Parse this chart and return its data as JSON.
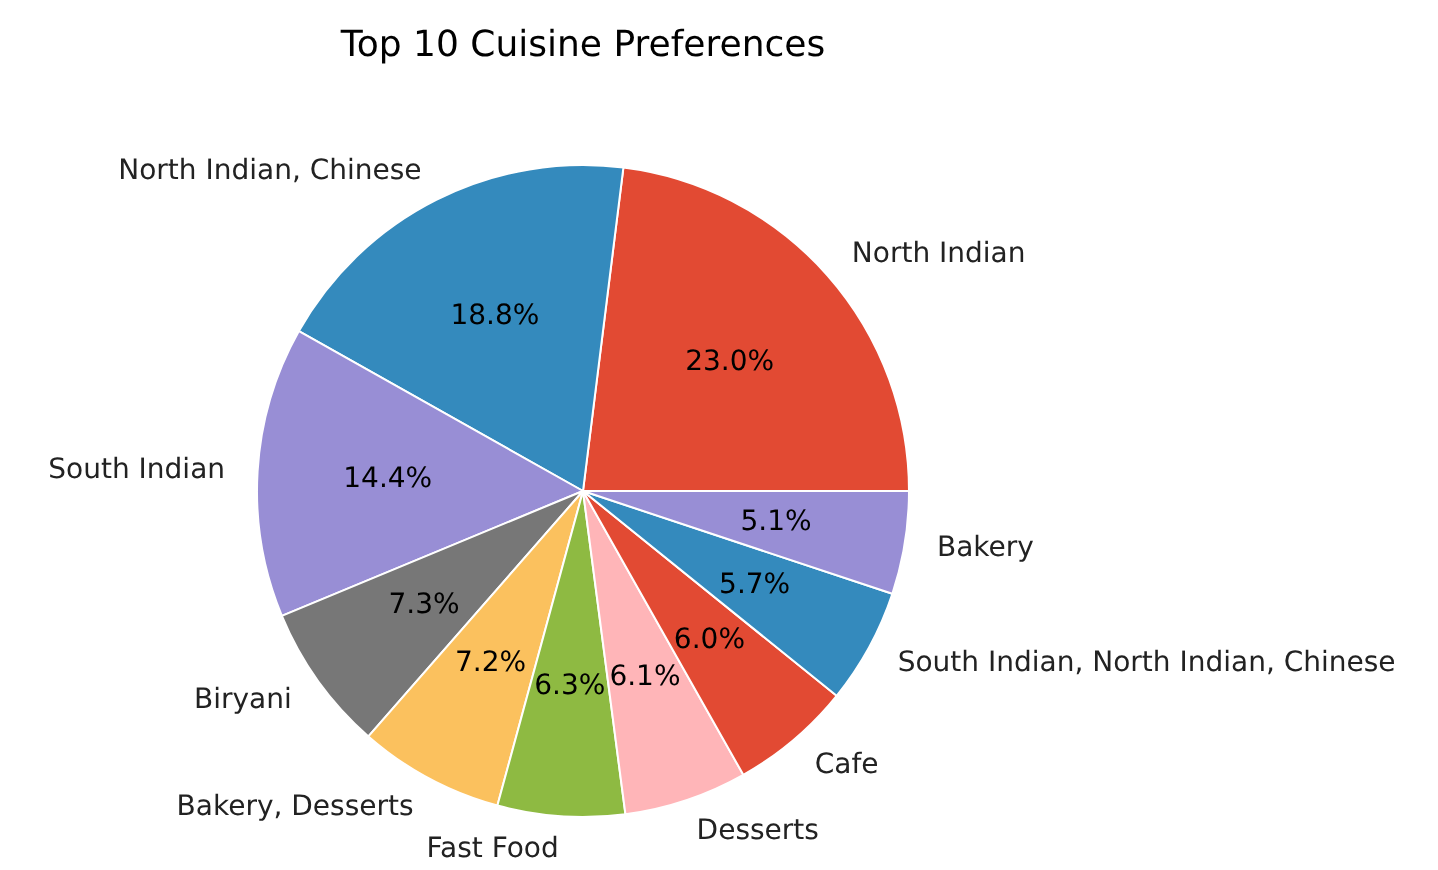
{
  "chart_data": {
    "type": "pie",
    "title": "Top 10 Cuisine Preferences",
    "categories": [
      "North Indian",
      "North Indian, Chinese",
      "South Indian",
      "Biryani",
      "Bakery, Desserts",
      "Fast Food",
      "Desserts",
      "Cafe",
      "South Indian, North Indian, Chinese",
      "Bakery"
    ],
    "values": [
      23.0,
      18.8,
      14.4,
      7.3,
      7.2,
      6.3,
      6.1,
      6.0,
      5.7,
      5.1
    ],
    "value_labels": [
      "23.0%",
      "18.8%",
      "14.4%",
      "7.3%",
      "7.2%",
      "6.3%",
      "6.1%",
      "6.0%",
      "5.7%",
      "5.1%"
    ],
    "colors": [
      "#e24a33",
      "#348abd",
      "#988ed5",
      "#777777",
      "#fbc15e",
      "#8eba42",
      "#ffb5b8",
      "#e24a33",
      "#348abd",
      "#988ed5"
    ]
  }
}
